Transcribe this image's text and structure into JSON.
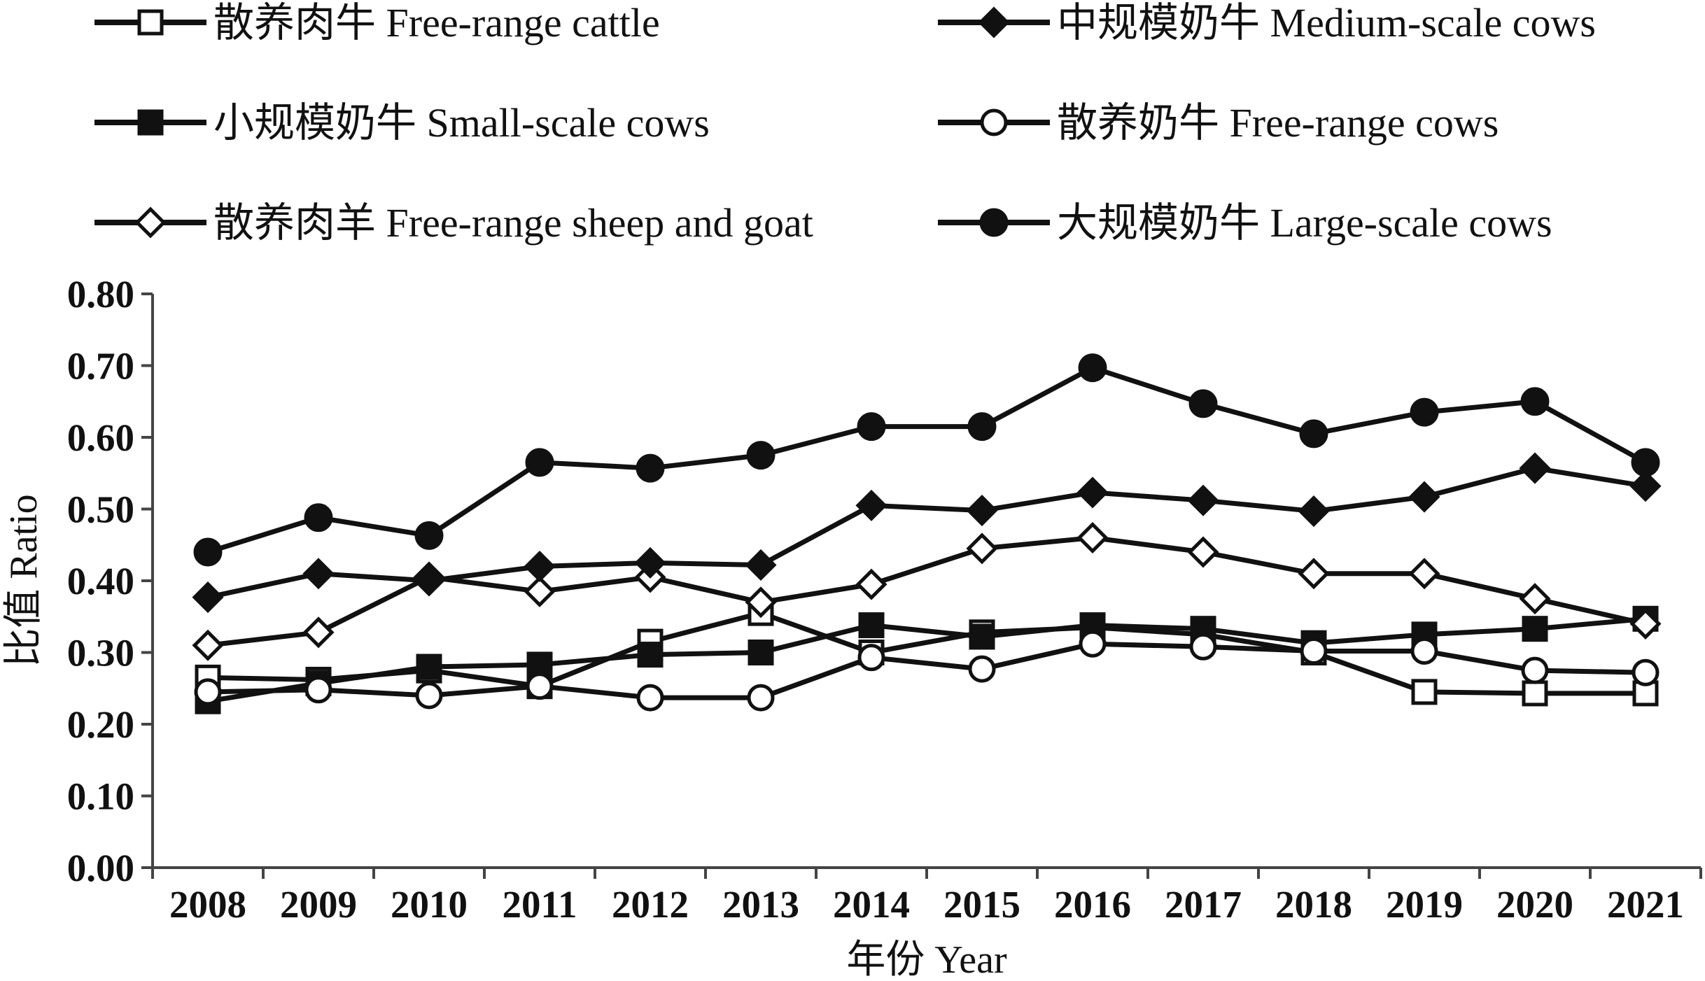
{
  "chart_data": {
    "type": "line",
    "title": "",
    "xlabel": "年份 Year",
    "ylabel": "比值 Ratio",
    "ylim": [
      0,
      0.8
    ],
    "yticks": [
      "0.00",
      "0.10",
      "0.20",
      "0.30",
      "0.40",
      "0.50",
      "0.60",
      "0.70",
      "0.80"
    ],
    "categories": [
      "2008",
      "2009",
      "2010",
      "2011",
      "2012",
      "2013",
      "2014",
      "2015",
      "2016",
      "2017",
      "2018",
      "2019",
      "2020",
      "2021"
    ],
    "legend_position": "top",
    "grid": false,
    "series": [
      {
        "name": "散养肉牛 Free-range cattle",
        "marker": "square-open",
        "values": [
          0.265,
          0.262,
          0.275,
          0.253,
          0.315,
          0.355,
          0.3,
          0.328,
          0.335,
          0.325,
          0.3,
          0.245,
          0.243,
          0.243
        ]
      },
      {
        "name": "小规模奶牛 Small-scale cows",
        "marker": "square-filled",
        "values": [
          0.232,
          0.257,
          0.28,
          0.283,
          0.297,
          0.3,
          0.338,
          0.322,
          0.338,
          0.333,
          0.313,
          0.325,
          0.333,
          0.347
        ]
      },
      {
        "name": "散养肉羊 Free-range sheep and goat",
        "marker": "diamond-open",
        "values": [
          0.31,
          0.328,
          0.405,
          0.385,
          0.405,
          0.37,
          0.395,
          0.445,
          0.46,
          0.44,
          0.41,
          0.41,
          0.375,
          0.34
        ]
      },
      {
        "name": "中规模奶牛 Medium-scale cows",
        "marker": "diamond-filled",
        "values": [
          0.377,
          0.41,
          0.4,
          0.42,
          0.425,
          0.422,
          0.505,
          0.498,
          0.523,
          0.512,
          0.497,
          0.517,
          0.557,
          0.532
        ]
      },
      {
        "name": "散养奶牛 Free-range cows",
        "marker": "circle-open",
        "values": [
          0.245,
          0.248,
          0.24,
          0.253,
          0.237,
          0.237,
          0.293,
          0.277,
          0.312,
          0.308,
          0.302,
          0.302,
          0.275,
          0.272
        ]
      },
      {
        "name": "大规模奶牛 Large-scale cows",
        "marker": "circle-filled",
        "values": [
          0.44,
          0.488,
          0.463,
          0.565,
          0.557,
          0.575,
          0.615,
          0.615,
          0.697,
          0.647,
          0.605,
          0.635,
          0.65,
          0.565
        ]
      }
    ]
  }
}
